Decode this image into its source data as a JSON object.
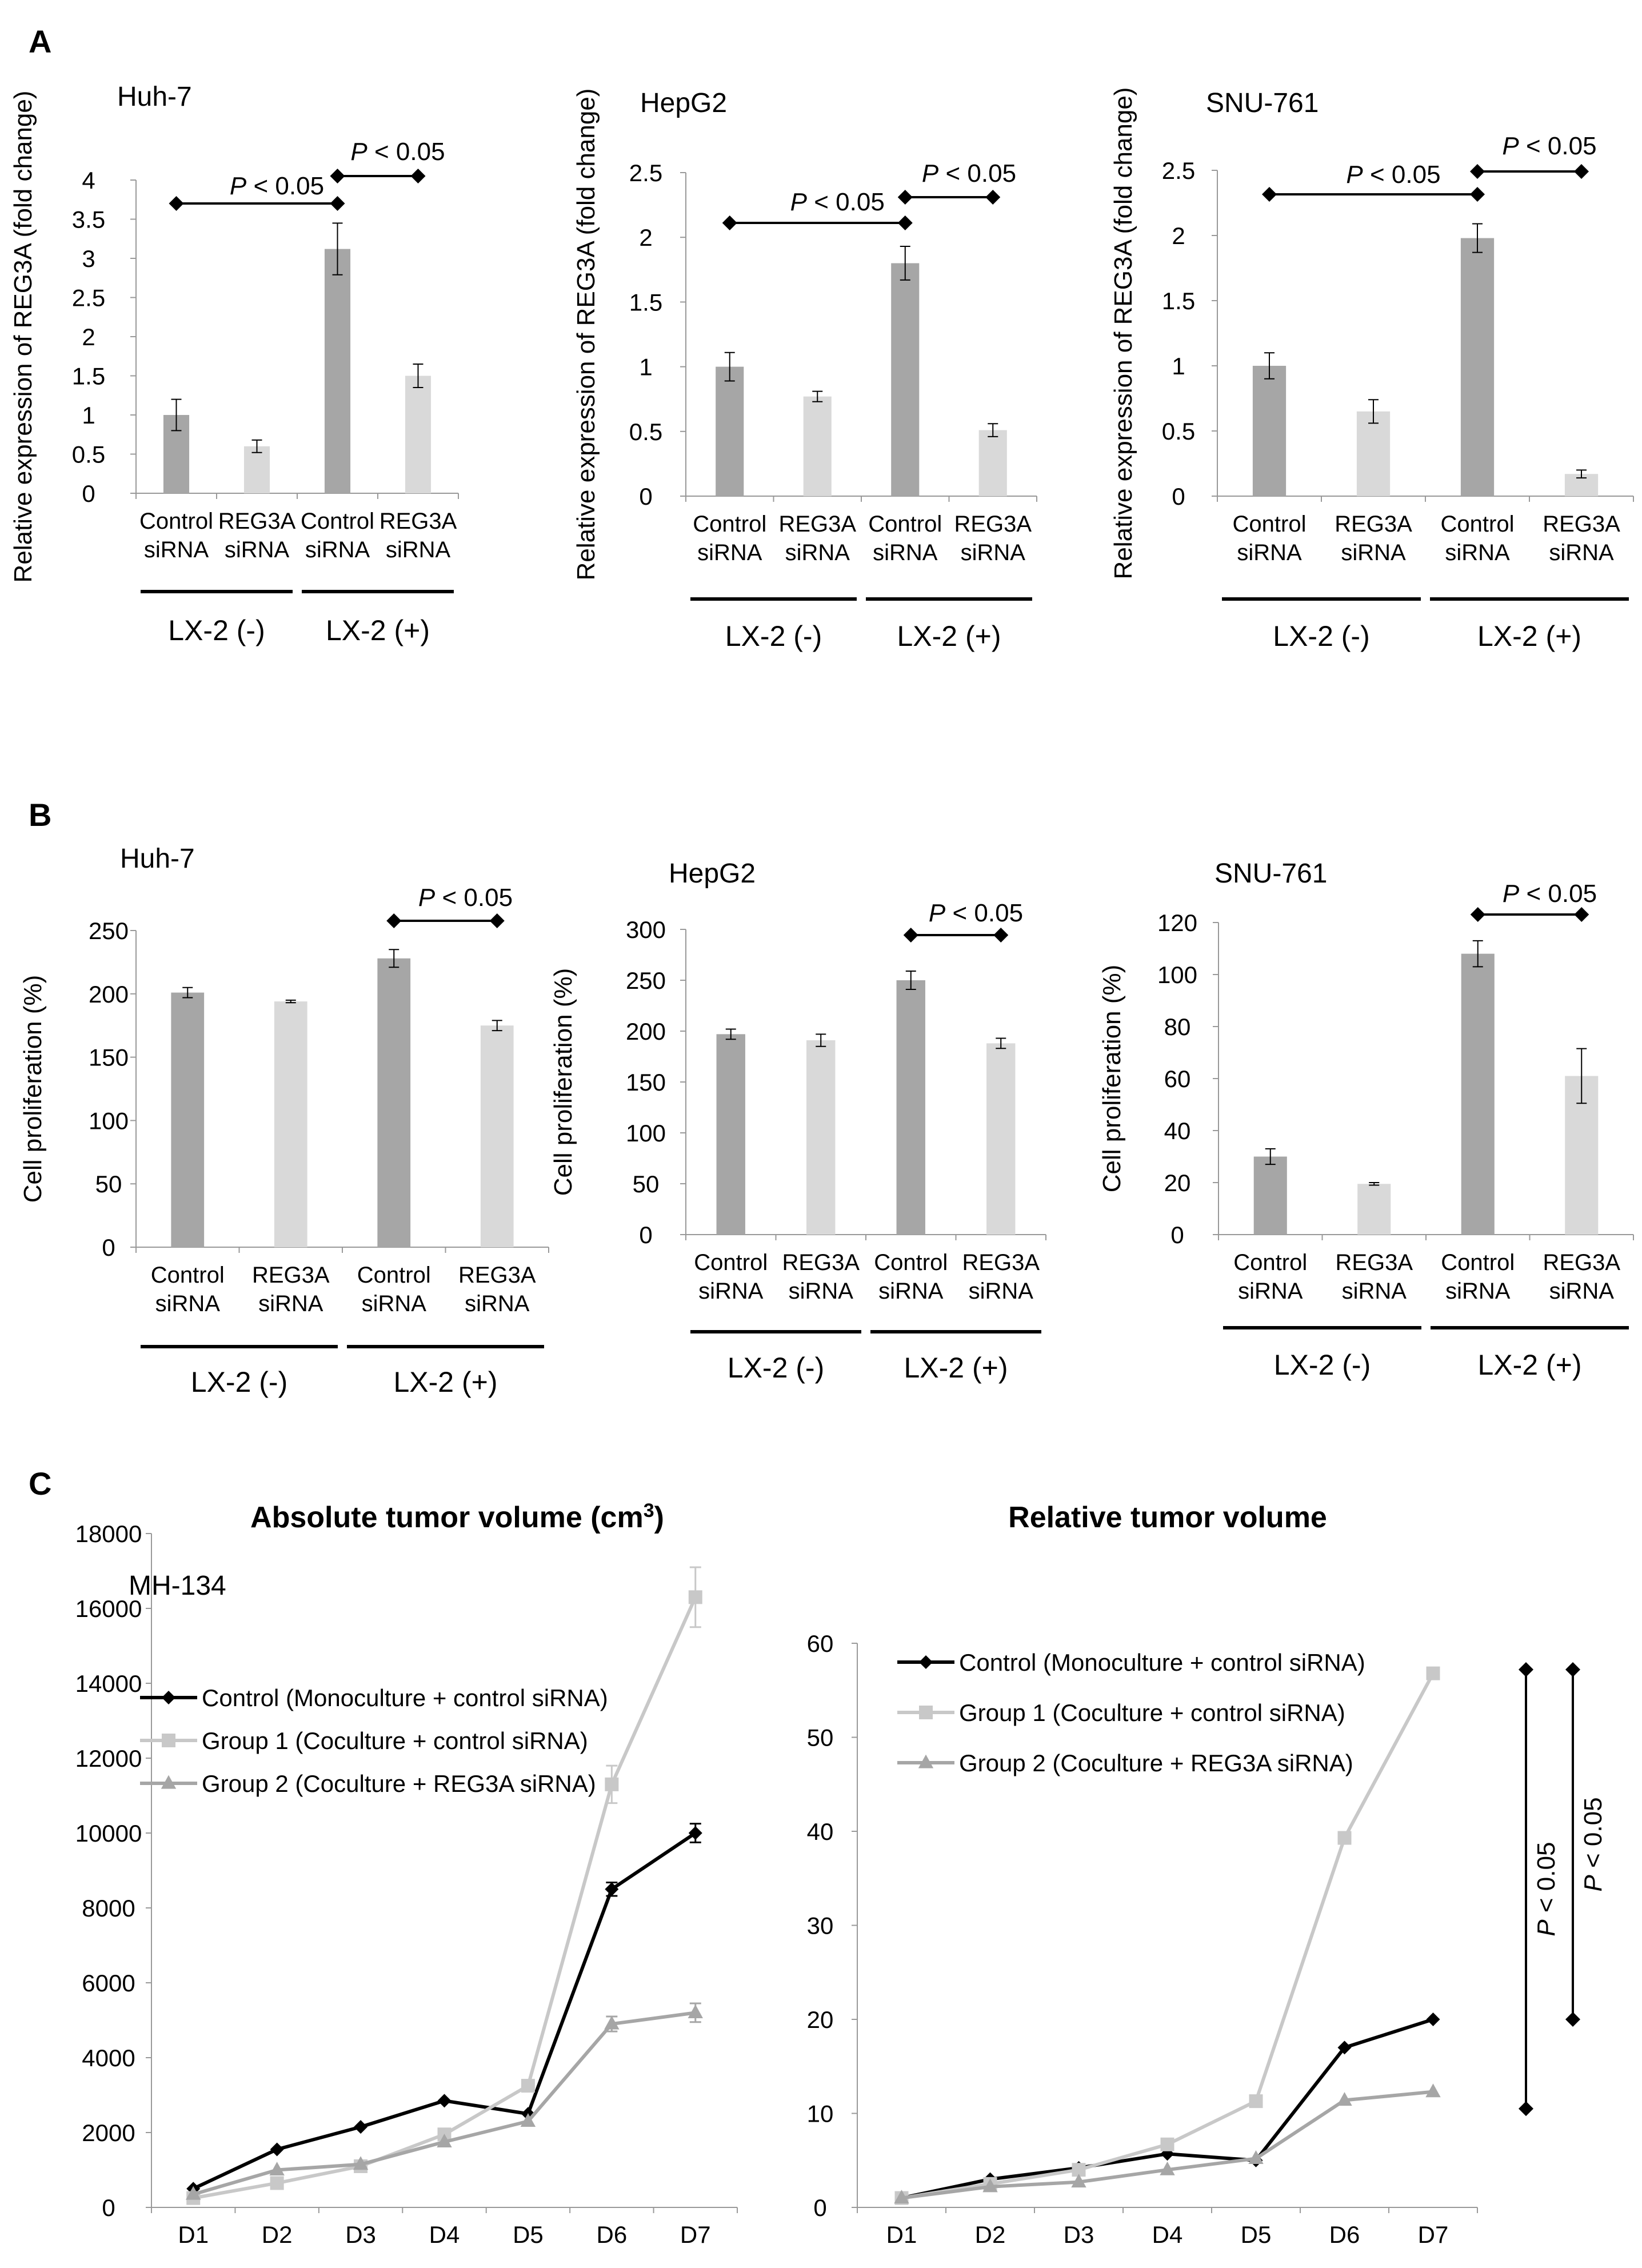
{
  "figure": {
    "panel_letters": [
      "A",
      "B",
      "C"
    ],
    "sigmark": "P",
    "sigtext": " < 0.05"
  },
  "chart_data": [
    {
      "id": "A1",
      "panel": "A",
      "type": "bar",
      "title": "Huh-7",
      "ylabel": "Relative expression of REG3A (fold change)",
      "ylim": [
        0,
        4
      ],
      "yticks": [
        "0",
        "0.5",
        "1",
        "1.5",
        "2",
        "2.5",
        "3",
        "3.5",
        "4"
      ],
      "categories": [
        [
          "Control",
          "siRNA"
        ],
        [
          "REG3A",
          "siRNA"
        ],
        [
          "Control",
          "siRNA"
        ],
        [
          "REG3A",
          "siRNA"
        ]
      ],
      "values": [
        1.0,
        0.6,
        3.12,
        1.5
      ],
      "errors": [
        0.2,
        0.08,
        0.33,
        0.15
      ],
      "bar_colors": [
        "#a6a6a6",
        "#d9d9d9",
        "#a6a6a6",
        "#d9d9d9"
      ],
      "groups": [
        {
          "label": "LX-2 (-)",
          "from": 0,
          "to": 1
        },
        {
          "label": "LX-2 (+)",
          "from": 2,
          "to": 3
        }
      ],
      "significance": [
        {
          "from": 0,
          "to": 2,
          "label": "P < 0.05"
        },
        {
          "from": 2,
          "to": 3,
          "label": "P < 0.05"
        }
      ]
    },
    {
      "id": "A2",
      "panel": "A",
      "type": "bar",
      "title": "HepG2",
      "ylabel": "Relative expression of REG3A (fold change)",
      "ylim": [
        0,
        2.5
      ],
      "yticks": [
        "0",
        "0.5",
        "1",
        "1.5",
        "2",
        "2.5"
      ],
      "categories": [
        [
          "Control",
          "siRNA"
        ],
        [
          "REG3A",
          "siRNA"
        ],
        [
          "Control",
          "siRNA"
        ],
        [
          "REG3A",
          "siRNA"
        ]
      ],
      "values": [
        1.0,
        0.77,
        1.8,
        0.51
      ],
      "errors": [
        0.11,
        0.04,
        0.13,
        0.05
      ],
      "bar_colors": [
        "#a6a6a6",
        "#d9d9d9",
        "#a6a6a6",
        "#d9d9d9"
      ],
      "groups": [
        {
          "label": "LX-2 (-)",
          "from": 0,
          "to": 1
        },
        {
          "label": "LX-2 (+)",
          "from": 2,
          "to": 3
        }
      ],
      "significance": [
        {
          "from": 0,
          "to": 2,
          "label": "P < 0.05"
        },
        {
          "from": 2,
          "to": 3,
          "label": "P < 0.05"
        }
      ]
    },
    {
      "id": "A3",
      "panel": "A",
      "type": "bar",
      "title": "SNU-761",
      "ylabel": "Relative expression of REG3A (fold change)",
      "ylim": [
        0,
        2.5
      ],
      "yticks": [
        "0",
        "0.5",
        "1",
        "1.5",
        "2",
        "2.5"
      ],
      "categories": [
        [
          "Control",
          "siRNA"
        ],
        [
          "REG3A",
          "siRNA"
        ],
        [
          "Control",
          "siRNA"
        ],
        [
          "REG3A",
          "siRNA"
        ]
      ],
      "values": [
        1.0,
        0.65,
        1.98,
        0.17
      ],
      "errors": [
        0.1,
        0.09,
        0.11,
        0.03
      ],
      "bar_colors": [
        "#a6a6a6",
        "#d9d9d9",
        "#a6a6a6",
        "#d9d9d9"
      ],
      "groups": [
        {
          "label": "LX-2 (-)",
          "from": 0,
          "to": 1
        },
        {
          "label": "LX-2 (+)",
          "from": 2,
          "to": 3
        }
      ],
      "significance": [
        {
          "from": 0,
          "to": 2,
          "label": "P < 0.05"
        },
        {
          "from": 2,
          "to": 3,
          "label": "P < 0.05"
        }
      ]
    },
    {
      "id": "B1",
      "panel": "B",
      "type": "bar",
      "title": "Huh-7",
      "ylabel": "Cell proliferation (%)",
      "ylim": [
        0,
        250
      ],
      "yticks": [
        "0",
        "50",
        "100",
        "150",
        "200",
        "250"
      ],
      "categories": [
        [
          "Control",
          "siRNA"
        ],
        [
          "REG3A",
          "siRNA"
        ],
        [
          "Control",
          "siRNA"
        ],
        [
          "REG3A",
          "siRNA"
        ]
      ],
      "values": [
        201,
        194,
        228,
        175
      ],
      "errors": [
        4,
        1,
        7,
        4
      ],
      "bar_colors": [
        "#a6a6a6",
        "#d9d9d9",
        "#a6a6a6",
        "#d9d9d9"
      ],
      "groups": [
        {
          "label": "LX-2 (-)",
          "from": 0,
          "to": 1
        },
        {
          "label": "LX-2 (+)",
          "from": 2,
          "to": 3
        }
      ],
      "significance": [
        {
          "from": 2,
          "to": 3,
          "label": "P < 0.05"
        }
      ]
    },
    {
      "id": "B2",
      "panel": "B",
      "type": "bar",
      "title": "HepG2",
      "ylabel": "Cell proliferation (%)",
      "ylim": [
        0,
        300
      ],
      "yticks": [
        "0",
        "50",
        "100",
        "150",
        "200",
        "250",
        "300"
      ],
      "categories": [
        [
          "Control",
          "siRNA"
        ],
        [
          "REG3A",
          "siRNA"
        ],
        [
          "Control",
          "siRNA"
        ],
        [
          "REG3A",
          "siRNA"
        ]
      ],
      "values": [
        197,
        191,
        250,
        188
      ],
      "errors": [
        5,
        6,
        9,
        5
      ],
      "bar_colors": [
        "#a6a6a6",
        "#d9d9d9",
        "#a6a6a6",
        "#d9d9d9"
      ],
      "groups": [
        {
          "label": "LX-2 (-)",
          "from": 0,
          "to": 1
        },
        {
          "label": "LX-2 (+)",
          "from": 2,
          "to": 3
        }
      ],
      "significance": [
        {
          "from": 2,
          "to": 3,
          "label": "P < 0.05"
        }
      ]
    },
    {
      "id": "B3",
      "panel": "B",
      "type": "bar",
      "title": "SNU-761",
      "ylabel": "Cell proliferation (%)",
      "ylim": [
        0,
        120
      ],
      "yticks": [
        "0",
        "20",
        "40",
        "60",
        "80",
        "100",
        "120"
      ],
      "categories": [
        [
          "Control",
          "siRNA"
        ],
        [
          "REG3A",
          "siRNA"
        ],
        [
          "Control",
          "siRNA"
        ],
        [
          "REG3A",
          "siRNA"
        ]
      ],
      "values": [
        30,
        19.5,
        108,
        61
      ],
      "errors": [
        3,
        0.5,
        5,
        10.5
      ],
      "bar_colors": [
        "#a6a6a6",
        "#d9d9d9",
        "#a6a6a6",
        "#d9d9d9"
      ],
      "groups": [
        {
          "label": "LX-2 (-)",
          "from": 0,
          "to": 1
        },
        {
          "label": "LX-2 (+)",
          "from": 2,
          "to": 3
        }
      ],
      "significance": [
        {
          "from": 2,
          "to": 3,
          "label": "P < 0.05"
        }
      ]
    },
    {
      "id": "C1",
      "panel": "C",
      "type": "line",
      "title": "Absolute tumor volume (cm",
      "title_sup": "3",
      "title_end": ")",
      "subtitle": "MH-134",
      "ylim": [
        0,
        18000
      ],
      "yticks": [
        "0",
        "2000",
        "4000",
        "6000",
        "8000",
        "10000",
        "12000",
        "14000",
        "16000",
        "18000"
      ],
      "x": [
        "D1",
        "D2",
        "D3",
        "D4",
        "D5",
        "D6",
        "D7"
      ],
      "series": [
        {
          "name": "Control (Monoculture + control siRNA)",
          "color": "#000000",
          "marker": "diamond",
          "values": [
            500,
            1550,
            2150,
            2850,
            2500,
            8500,
            10000
          ],
          "errors": [
            0,
            0,
            0,
            0,
            0,
            180,
            250
          ]
        },
        {
          "name": "Group 1 (Coculture + control siRNA)",
          "color": "#c8c8c8",
          "marker": "square",
          "values": [
            250,
            650,
            1100,
            1950,
            3250,
            11300,
            16300
          ],
          "errors": [
            0,
            0,
            0,
            0,
            0,
            500,
            800
          ]
        },
        {
          "name": "Group 2 (Coculture + REG3A siRNA)",
          "color": "#a6a6a6",
          "marker": "triangle",
          "values": [
            350,
            1000,
            1150,
            1750,
            2300,
            4900,
            5200
          ],
          "errors": [
            0,
            0,
            0,
            0,
            0,
            200,
            250
          ]
        }
      ]
    },
    {
      "id": "C2",
      "panel": "C",
      "type": "line",
      "title": "Relative tumor volume",
      "ylim": [
        0,
        60
      ],
      "yticks": [
        "0",
        "10",
        "20",
        "30",
        "40",
        "50",
        "60"
      ],
      "x": [
        "D1",
        "D2",
        "D3",
        "D4",
        "D5",
        "D6",
        "D7"
      ],
      "series": [
        {
          "name": "Control (Monoculture + control siRNA)",
          "color": "#000000",
          "marker": "diamond",
          "values": [
            1,
            3,
            4.2,
            5.7,
            5,
            17,
            20
          ]
        },
        {
          "name": "Group 1 (Coculture + control siRNA)",
          "color": "#c8c8c8",
          "marker": "square",
          "values": [
            1,
            2.5,
            4,
            6.7,
            11.3,
            39.3,
            56.8
          ]
        },
        {
          "name": "Group 2 (Coculture + REG3A siRNA)",
          "color": "#a6a6a6",
          "marker": "triangle",
          "values": [
            1,
            2.2,
            2.7,
            4,
            5.2,
            11.4,
            12.3
          ]
        }
      ],
      "brackets": [
        {
          "from": 10.5,
          "to": 57.2,
          "label": "P < 0.05"
        },
        {
          "from": 20,
          "to": 57.2,
          "label": "P < 0.05"
        }
      ]
    }
  ]
}
